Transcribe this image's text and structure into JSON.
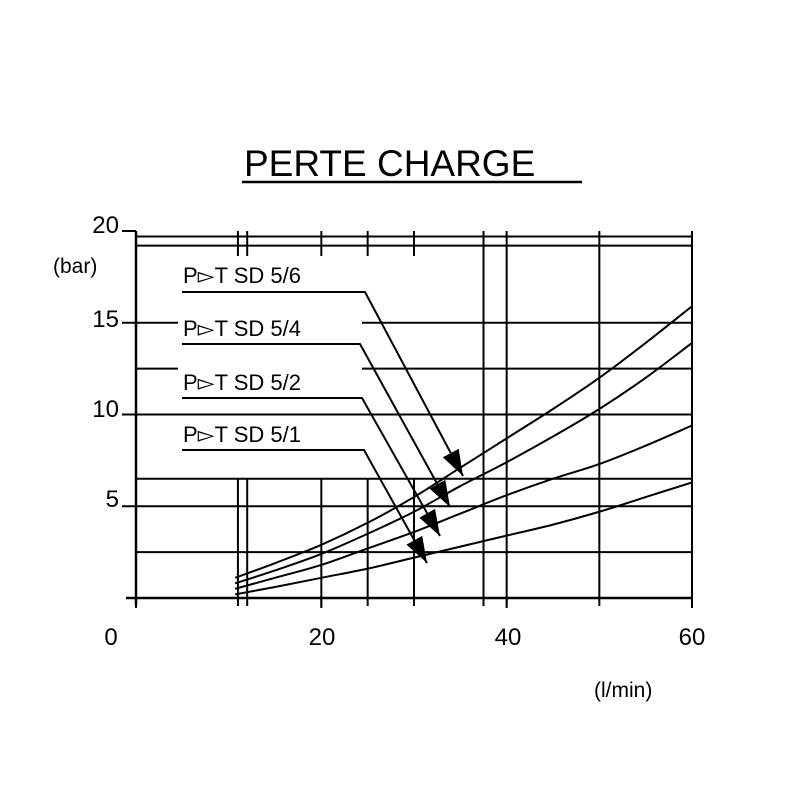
{
  "chart_data": {
    "type": "line",
    "title": "PERTE CHARGE",
    "xlabel": "(l/min)",
    "ylabel": "(bar)",
    "xlim": [
      0,
      60
    ],
    "ylim": [
      0,
      20
    ],
    "x_ticks": [
      {
        "value": 0,
        "label": "0"
      },
      {
        "value": 20,
        "label": "20"
      },
      {
        "value": 40,
        "label": "40"
      },
      {
        "value": 60,
        "label": "60"
      }
    ],
    "y_ticks": [
      {
        "value": 5,
        "label": "5"
      },
      {
        "value": 10,
        "label": "10"
      },
      {
        "value": 15,
        "label": "15"
      },
      {
        "value": 20,
        "label": "20"
      }
    ],
    "grid": true,
    "vertical_gridlines": [
      11,
      12,
      20,
      25,
      30,
      37.5,
      40,
      50,
      60
    ],
    "horizontal_gridlines": [
      2.5,
      5,
      6.5,
      10,
      12.5,
      15,
      19.2,
      19.7
    ],
    "series": [
      {
        "name": "P▻T SD 5/6",
        "x": [
          10.7,
          15,
          20,
          25,
          30,
          35,
          40,
          45,
          50,
          55,
          60
        ],
        "y": [
          1.1,
          1.9,
          2.9,
          4.1,
          5.5,
          7.1,
          8.7,
          10.3,
          12.0,
          13.9,
          15.9
        ]
      },
      {
        "name": "P▻T SD 5/4",
        "x": [
          10.7,
          15,
          20,
          25,
          30,
          35,
          40,
          45,
          50,
          55,
          60
        ],
        "y": [
          0.8,
          1.5,
          2.4,
          3.5,
          4.7,
          6.1,
          7.4,
          8.8,
          10.3,
          12.0,
          13.9
        ]
      },
      {
        "name": "P▻T SD 5/2",
        "x": [
          10.7,
          15,
          20,
          25,
          30,
          35,
          40,
          45,
          50,
          55,
          60
        ],
        "y": [
          0.5,
          1.1,
          1.8,
          2.7,
          3.6,
          4.6,
          5.6,
          6.5,
          7.3,
          8.3,
          9.4
        ]
      },
      {
        "name": "P▻T SD 5/1",
        "x": [
          10.7,
          15,
          20,
          25,
          30,
          35,
          40,
          45,
          50,
          55,
          60
        ],
        "y": [
          0.2,
          0.6,
          1.1,
          1.6,
          2.2,
          2.8,
          3.4,
          4.0,
          4.7,
          5.5,
          6.3
        ]
      }
    ]
  }
}
